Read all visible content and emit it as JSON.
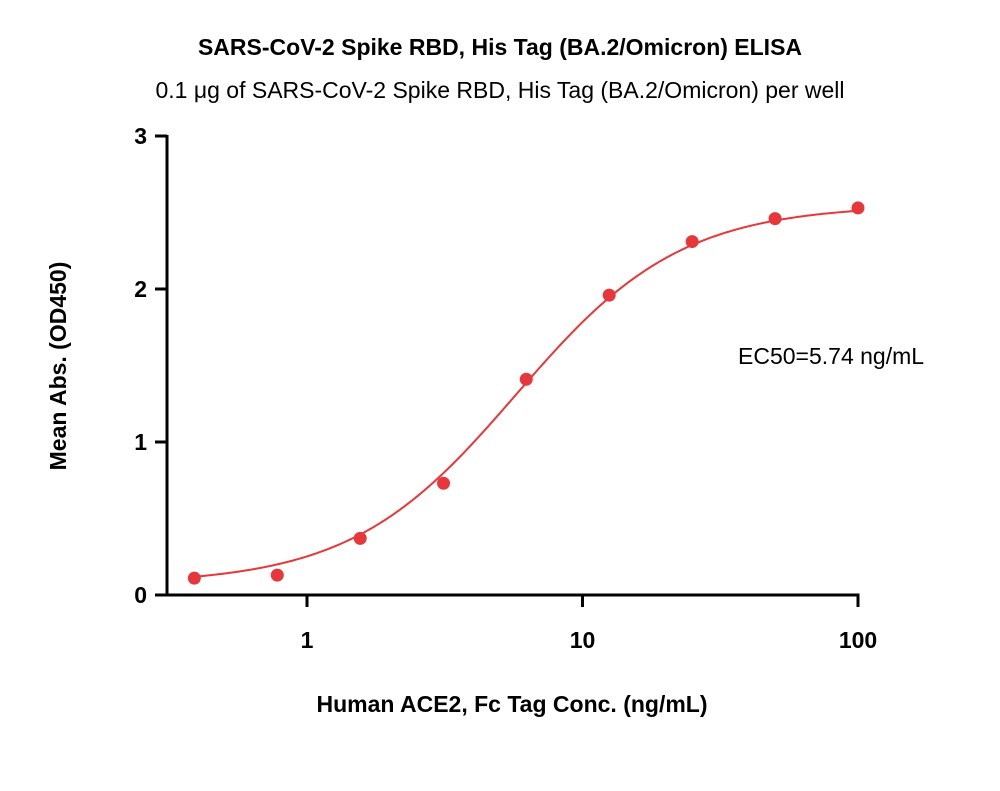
{
  "chart_data": {
    "type": "scatter",
    "title": "SARS-CoV-2 Spike RBD, His Tag (BA.2/Omicron) ELISA",
    "subtitle": "0.1 μg of SARS-CoV-2 Spike RBD, His Tag (BA.2/Omicron) per well",
    "xlabel": "Human ACE2, Fc Tag Conc. (ng/mL)",
    "ylabel": "Mean Abs. (OD450)",
    "x_scale": "log",
    "xlim": [
      0.3,
      100
    ],
    "ylim": [
      0,
      3
    ],
    "x_ticks": [
      1,
      10,
      100
    ],
    "x_tick_labels": [
      "1",
      "10",
      "100"
    ],
    "y_ticks": [
      0,
      1,
      2,
      3
    ],
    "y_tick_labels": [
      "0",
      "1",
      "2",
      "3"
    ],
    "grid": false,
    "series": [
      {
        "color": "#e8373b",
        "x": [
          0.39,
          0.78,
          1.56,
          3.13,
          6.25,
          12.5,
          25,
          50,
          100
        ],
        "y": [
          0.11,
          0.13,
          0.37,
          0.73,
          1.41,
          1.96,
          2.31,
          2.46,
          2.53
        ],
        "fit_curve": true
      }
    ],
    "annotations": [
      {
        "text": "EC50=5.74 ng/mL"
      }
    ],
    "fit": {
      "bottom": 0.07,
      "top": 2.55,
      "ec50": 5.74,
      "hill": 1.45
    }
  }
}
